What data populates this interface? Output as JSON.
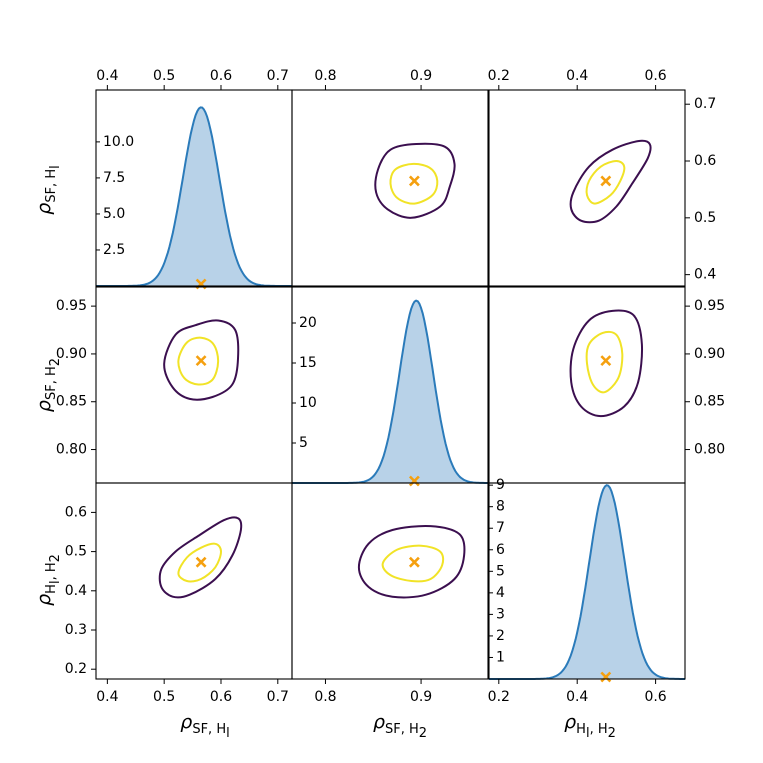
{
  "chart_data": {
    "type": "corner",
    "colors": {
      "kde_line": "#2b7bba",
      "kde_fill": "#b8d2e8",
      "contour_outer": "#3b0f4f",
      "contour_inner": "#f1e327",
      "marker": "#f5a00f",
      "axes": "#000000"
    },
    "params": [
      {
        "name": "rho_SF_H1",
        "label_main": "ρ",
        "label_sub": "SF, H",
        "label_subsub": "l",
        "label": "ρ_{SF, H_l}",
        "range": [
          0.38,
          0.725
        ],
        "ticks": [
          "0.4",
          "0.5",
          "0.6",
          "0.7"
        ],
        "tick_values": [
          0.4,
          0.5,
          0.6,
          0.7
        ],
        "true_value": 0.565,
        "kde_mean": 0.565,
        "kde_sd": 0.032,
        "kde_peak": 12.4,
        "kde_range": [
          0,
          13.6
        ],
        "kde_ticks": [
          "2.5",
          "5.0",
          "7.5",
          "10.0"
        ],
        "kde_tick_values": [
          2.5,
          5.0,
          7.5,
          10.0
        ]
      },
      {
        "name": "rho_SF_H2",
        "label_main": "ρ",
        "label_sub": "SF, H",
        "label_subsub": "2",
        "label": "ρ_{SF, H_2}",
        "range": [
          0.765,
          0.97
        ],
        "ticks": [
          "0.80",
          "0.85",
          "0.90",
          "0.95"
        ],
        "tick_values": [
          0.8,
          0.85,
          0.9,
          0.95
        ],
        "top_ticks": [
          "0.8",
          "0.9"
        ],
        "top_tick_values": [
          0.8,
          0.9
        ],
        "true_value": 0.893,
        "kde_mean": 0.895,
        "kde_sd": 0.0175,
        "kde_peak": 22.8,
        "kde_range": [
          0,
          24.5
        ],
        "kde_ticks": [
          "5",
          "10",
          "15",
          "20"
        ],
        "kde_tick_values": [
          5,
          10,
          15,
          20
        ]
      },
      {
        "name": "rho_H1_H2",
        "label_main": "ρ",
        "label_sub": "H",
        "label_subsub": "l",
        "label_sub2": ", H",
        "label_subsub2": "2",
        "label": "ρ_{H_l, H_2}",
        "range": [
          0.175,
          0.675
        ],
        "ticks": [
          "0.2",
          "0.3",
          "0.4",
          "0.5",
          "0.6"
        ],
        "tick_values": [
          0.2,
          0.3,
          0.4,
          0.5,
          0.6
        ],
        "bottom_ticks": [
          "0.2",
          "0.4",
          "0.6"
        ],
        "bottom_tick_values": [
          0.2,
          0.4,
          0.6
        ],
        "true_value": 0.473,
        "kde_mean": 0.476,
        "kde_sd": 0.045,
        "kde_peak": 9.0,
        "kde_range": [
          0,
          9.1
        ],
        "kde_ticks": [
          "1",
          "2",
          "3",
          "4",
          "5",
          "6",
          "7",
          "8",
          "9"
        ],
        "kde_tick_values": [
          1,
          2,
          3,
          4,
          5,
          6,
          7,
          8,
          9
        ]
      }
    ],
    "right_ticks_row1": [
      "0.4",
      "0.5",
      "0.6",
      "0.7"
    ],
    "right_tick_values_row1": [
      0.4,
      0.5,
      0.6,
      0.7
    ],
    "contours": [
      {
        "panel": "rho_SF_H2 vs rho_SF_H1",
        "outer": [
          [
            0.5,
            0.89
          ],
          [
            0.515,
            0.865
          ],
          [
            0.545,
            0.853
          ],
          [
            0.585,
            0.855
          ],
          [
            0.62,
            0.868
          ],
          [
            0.63,
            0.895
          ],
          [
            0.625,
            0.925
          ],
          [
            0.595,
            0.935
          ],
          [
            0.555,
            0.93
          ],
          [
            0.52,
            0.92
          ]
        ],
        "inner": [
          [
            0.525,
            0.893
          ],
          [
            0.535,
            0.875
          ],
          [
            0.56,
            0.868
          ],
          [
            0.585,
            0.873
          ],
          [
            0.595,
            0.892
          ],
          [
            0.587,
            0.91
          ],
          [
            0.565,
            0.917
          ],
          [
            0.54,
            0.912
          ]
        ]
      },
      {
        "panel": "rho_H1_H2 vs rho_SF_H1",
        "outer": [
          [
            0.495,
            0.41
          ],
          [
            0.515,
            0.385
          ],
          [
            0.545,
            0.39
          ],
          [
            0.59,
            0.43
          ],
          [
            0.62,
            0.49
          ],
          [
            0.635,
            0.555
          ],
          [
            0.63,
            0.585
          ],
          [
            0.605,
            0.58
          ],
          [
            0.56,
            0.54
          ],
          [
            0.52,
            0.5
          ],
          [
            0.495,
            0.455
          ]
        ],
        "inner": [
          [
            0.525,
            0.445
          ],
          [
            0.54,
            0.425
          ],
          [
            0.565,
            0.43
          ],
          [
            0.59,
            0.46
          ],
          [
            0.6,
            0.5
          ],
          [
            0.59,
            0.52
          ],
          [
            0.565,
            0.51
          ],
          [
            0.54,
            0.485
          ]
        ]
      },
      {
        "panel": "rho_H1_H2 vs rho_SF_H2",
        "outer": [
          [
            0.835,
            0.46
          ],
          [
            0.845,
            0.41
          ],
          [
            0.87,
            0.385
          ],
          [
            0.905,
            0.39
          ],
          [
            0.935,
            0.43
          ],
          [
            0.945,
            0.49
          ],
          [
            0.94,
            0.545
          ],
          [
            0.91,
            0.565
          ],
          [
            0.87,
            0.555
          ],
          [
            0.845,
            0.52
          ]
        ],
        "inner": [
          [
            0.86,
            0.47
          ],
          [
            0.868,
            0.44
          ],
          [
            0.89,
            0.425
          ],
          [
            0.91,
            0.43
          ],
          [
            0.922,
            0.465
          ],
          [
            0.92,
            0.5
          ],
          [
            0.9,
            0.515
          ],
          [
            0.875,
            0.505
          ]
        ]
      }
    ]
  }
}
